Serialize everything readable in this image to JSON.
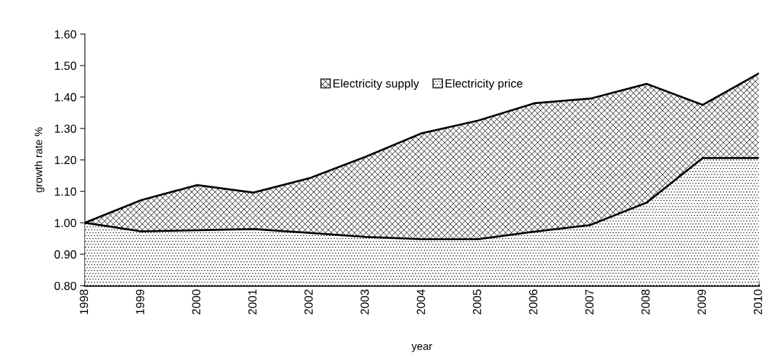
{
  "chart_data": {
    "type": "area",
    "xlabel": "year",
    "ylabel": "growth rate %",
    "categories": [
      "1998",
      "1999",
      "2000",
      "2001",
      "2002",
      "2003",
      "2004",
      "2005",
      "2006",
      "2007",
      "2008",
      "2009",
      "2010"
    ],
    "series": [
      {
        "name": "Electricity supply",
        "color": "#000000",
        "values": [
          1.0,
          1.072,
          1.12,
          1.096,
          1.142,
          1.21,
          1.285,
          1.325,
          1.38,
          1.395,
          1.442,
          1.375,
          1.475
        ]
      },
      {
        "name": "Electricity price",
        "color": "#000000",
        "values": [
          1.0,
          0.973,
          0.976,
          0.98,
          0.968,
          0.955,
          0.948,
          0.948,
          0.972,
          0.993,
          1.064,
          1.206,
          1.206
        ]
      }
    ],
    "ylim": [
      0.8,
      1.6
    ],
    "yticks": [
      {
        "value": 0.8,
        "label": "0.80"
      },
      {
        "value": 0.9,
        "label": "0.90"
      },
      {
        "value": 1.0,
        "label": "1.00"
      },
      {
        "value": 1.1,
        "label": "1.10"
      },
      {
        "value": 1.2,
        "label": "1.20"
      },
      {
        "value": 1.3,
        "label": "1.30"
      },
      {
        "value": 1.4,
        "label": "1.40"
      },
      {
        "value": 1.5,
        "label": "1.50"
      },
      {
        "value": 1.6,
        "label": "1.60"
      }
    ],
    "legend": "top",
    "grid": false
  }
}
